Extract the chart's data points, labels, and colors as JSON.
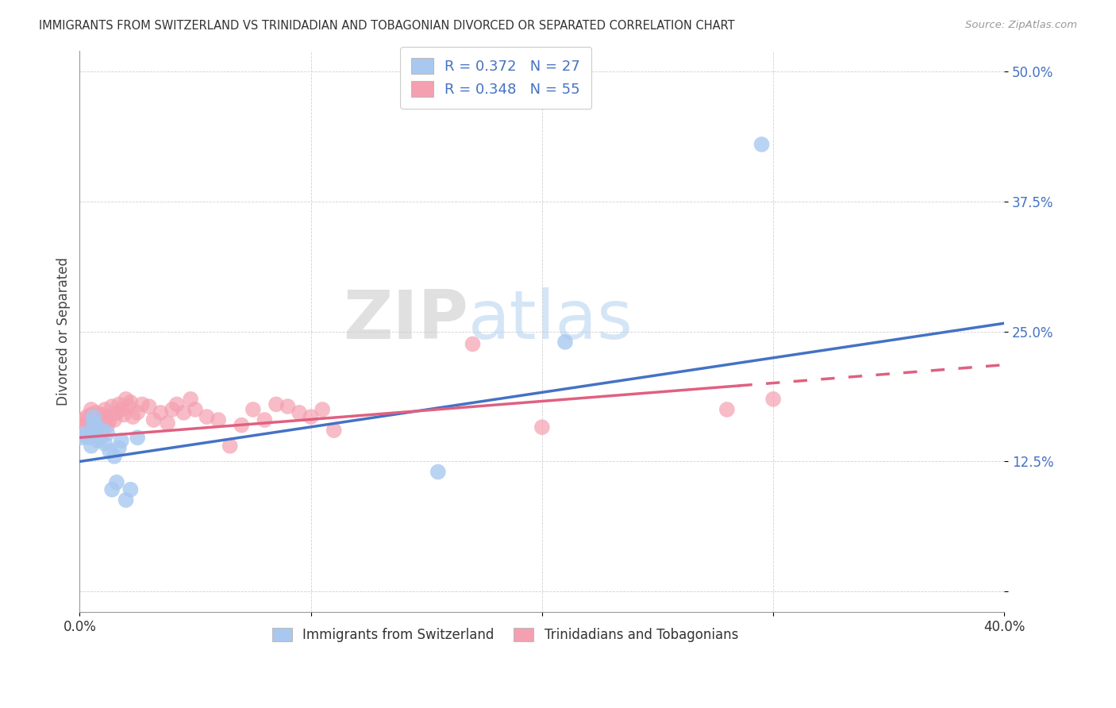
{
  "title": "IMMIGRANTS FROM SWITZERLAND VS TRINIDADIAN AND TOBAGONIAN DIVORCED OR SEPARATED CORRELATION CHART",
  "source": "Source: ZipAtlas.com",
  "ylabel": "Divorced or Separated",
  "xlim": [
    0.0,
    0.4
  ],
  "ylim": [
    -0.02,
    0.52
  ],
  "xticks": [
    0.0,
    0.1,
    0.2,
    0.3,
    0.4
  ],
  "yticks": [
    0.0,
    0.125,
    0.25,
    0.375,
    0.5
  ],
  "xticklabels": [
    "0.0%",
    "",
    "",
    "",
    "40.0%"
  ],
  "yticklabels": [
    "",
    "12.5%",
    "25.0%",
    "37.5%",
    "50.0%"
  ],
  "color_blue": "#A8C8F0",
  "color_pink": "#F4A0B0",
  "color_blue_dark": "#4472C4",
  "color_pink_dark": "#E06080",
  "watermark_zip": "ZIP",
  "watermark_atlas": "atlas",
  "legend_label1": "Immigrants from Switzerland",
  "legend_label2": "Trinidadians and Tobagonians",
  "blue_scatter_x": [
    0.001,
    0.002,
    0.003,
    0.004,
    0.005,
    0.006,
    0.006,
    0.007,
    0.008,
    0.008,
    0.009,
    0.01,
    0.011,
    0.012,
    0.013,
    0.014,
    0.015,
    0.016,
    0.017,
    0.018,
    0.02,
    0.022,
    0.025,
    0.155,
    0.21,
    0.295
  ],
  "blue_scatter_y": [
    0.148,
    0.15,
    0.152,
    0.148,
    0.14,
    0.162,
    0.168,
    0.16,
    0.153,
    0.145,
    0.148,
    0.155,
    0.142,
    0.152,
    0.135,
    0.098,
    0.13,
    0.105,
    0.138,
    0.145,
    0.088,
    0.098,
    0.148,
    0.115,
    0.24,
    0.43
  ],
  "pink_scatter_x": [
    0.001,
    0.002,
    0.003,
    0.004,
    0.005,
    0.005,
    0.006,
    0.007,
    0.007,
    0.008,
    0.008,
    0.009,
    0.01,
    0.01,
    0.011,
    0.012,
    0.012,
    0.013,
    0.014,
    0.015,
    0.016,
    0.017,
    0.018,
    0.019,
    0.02,
    0.021,
    0.022,
    0.023,
    0.025,
    0.027,
    0.03,
    0.032,
    0.035,
    0.038,
    0.04,
    0.042,
    0.045,
    0.048,
    0.05,
    0.055,
    0.06,
    0.065,
    0.07,
    0.075,
    0.08,
    0.085,
    0.09,
    0.095,
    0.1,
    0.105,
    0.11,
    0.17,
    0.2,
    0.28,
    0.3
  ],
  "pink_scatter_y": [
    0.16,
    0.165,
    0.168,
    0.162,
    0.17,
    0.175,
    0.158,
    0.168,
    0.172,
    0.162,
    0.158,
    0.168,
    0.162,
    0.17,
    0.175,
    0.16,
    0.168,
    0.165,
    0.178,
    0.165,
    0.172,
    0.18,
    0.175,
    0.17,
    0.185,
    0.178,
    0.182,
    0.168,
    0.172,
    0.18,
    0.178,
    0.165,
    0.172,
    0.162,
    0.175,
    0.18,
    0.172,
    0.185,
    0.175,
    0.168,
    0.165,
    0.14,
    0.16,
    0.175,
    0.165,
    0.18,
    0.178,
    0.172,
    0.168,
    0.175,
    0.155,
    0.238,
    0.158,
    0.175,
    0.185
  ],
  "blue_line_x0": 0.0,
  "blue_line_y0": 0.125,
  "blue_line_x1": 0.4,
  "blue_line_y1": 0.258,
  "pink_line_x0": 0.0,
  "pink_line_y0": 0.148,
  "pink_line_x1_solid": 0.285,
  "pink_line_x1": 0.4,
  "pink_line_y1": 0.218
}
